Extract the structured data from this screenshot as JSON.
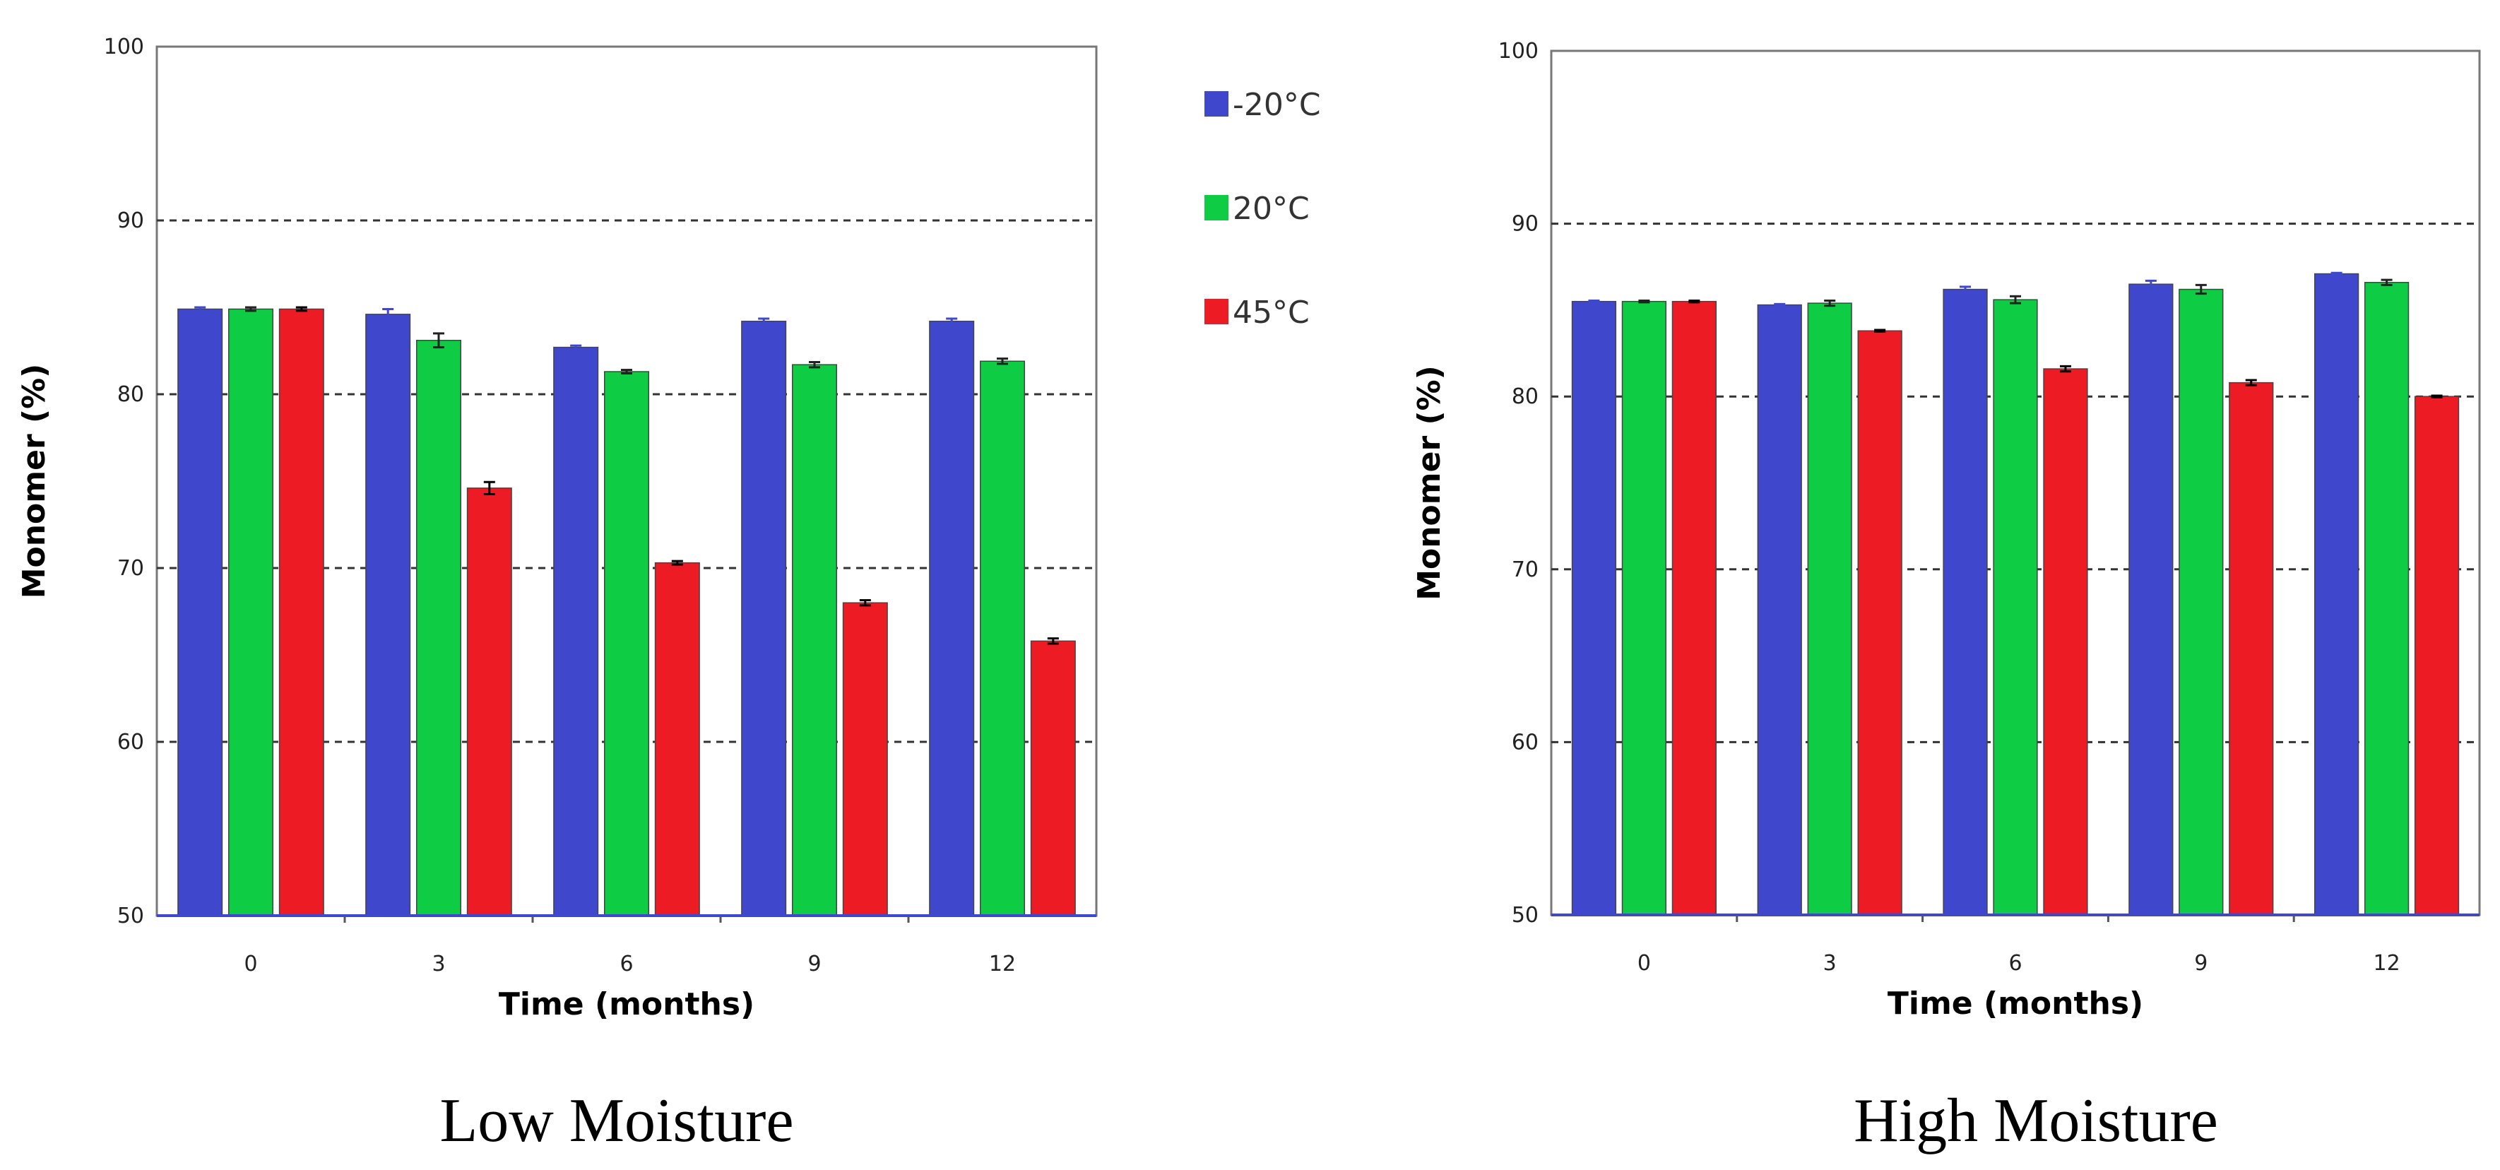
{
  "chart_data": [
    {
      "type": "bar",
      "title": "Low Moisture",
      "xlabel": "Time (months)",
      "ylabel": "Monomer (%)",
      "ylim": [
        50,
        100
      ],
      "yticks": [
        "50",
        "60",
        "70",
        "80",
        "90",
        "100"
      ],
      "grid": "dashed horizontal",
      "categories": [
        "0",
        "3",
        "6",
        "9",
        "12"
      ],
      "series": [
        {
          "name": "-20°C",
          "color": "#3f48cc",
          "values": [
            84.9,
            84.6,
            82.7,
            84.2,
            84.2
          ],
          "err": [
            0.1,
            0.3,
            0.1,
            0.15,
            0.15
          ]
        },
        {
          "name": "20°C",
          "color": "#0fcc45",
          "values": [
            84.9,
            83.1,
            81.3,
            81.7,
            81.9
          ],
          "err": [
            0.1,
            0.4,
            0.1,
            0.15,
            0.15
          ]
        },
        {
          "name": "45°C",
          "color": "#ed1c24",
          "values": [
            84.9,
            74.6,
            70.3,
            68.0,
            65.8
          ],
          "err": [
            0.1,
            0.35,
            0.1,
            0.15,
            0.15
          ]
        }
      ],
      "legend": "right"
    },
    {
      "type": "bar",
      "title": "High Moisture",
      "xlabel": "Time (months)",
      "ylabel": "Monomer (%)",
      "ylim": [
        50,
        100
      ],
      "yticks": [
        "50",
        "60",
        "70",
        "80",
        "90",
        "100"
      ],
      "grid": "dashed horizontal",
      "categories": [
        "0",
        "3",
        "6",
        "9",
        "12"
      ],
      "series": [
        {
          "name": "-20°C",
          "color": "#3f48cc",
          "values": [
            85.5,
            85.3,
            86.2,
            86.5,
            87.1
          ],
          "err": [
            0.05,
            0.05,
            0.15,
            0.2,
            0.05
          ]
        },
        {
          "name": "20°C",
          "color": "#0fcc45",
          "values": [
            85.5,
            85.4,
            85.6,
            86.2,
            86.6
          ],
          "err": [
            0.05,
            0.15,
            0.2,
            0.25,
            0.15
          ]
        },
        {
          "name": "45°C",
          "color": "#ed1c24",
          "values": [
            85.5,
            83.8,
            81.6,
            80.8,
            80.0
          ],
          "err": [
            0.05,
            0.05,
            0.15,
            0.15,
            0.05
          ]
        }
      ]
    }
  ]
}
